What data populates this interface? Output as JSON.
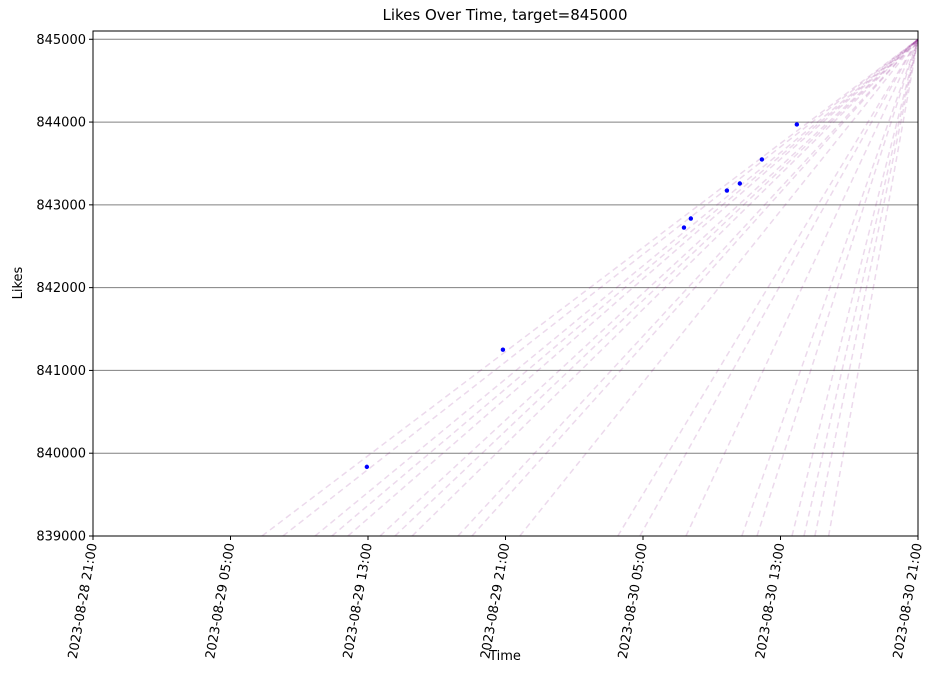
{
  "chart_data": {
    "type": "scatter",
    "title": "Likes Over Time, target=845000",
    "x_label": "Time",
    "y_label": "Likes",
    "x": [
      "2023-08-29 12:56",
      "2023-08-29 20:51",
      "2023-08-30 07:23",
      "2023-08-30 07:47",
      "2023-08-30 09:53",
      "2023-08-30 10:38",
      "2023-08-30 11:55",
      "2023-08-30 13:57"
    ],
    "values": [
      839835,
      841250,
      842726,
      842835,
      843173,
      843258,
      843548,
      843971
    ],
    "color": "#0000ff",
    "projections": {
      "color": "#800080",
      "target_x": "2023-08-30 21:00",
      "target": 845000,
      "start_y": 839000,
      "x_start": [
        "2023-08-29 06:50",
        "2023-08-29 08:03",
        "2023-08-29 09:55",
        "2023-08-29 10:54",
        "2023-08-29 11:50",
        "2023-08-29 13:42",
        "2023-08-29 14:34",
        "2023-08-29 15:34",
        "2023-08-29 18:14",
        "2023-08-29 19:03",
        "2023-08-29 21:50",
        "2023-08-30 03:32",
        "2023-08-30 04:49",
        "2023-08-30 07:30",
        "2023-08-30 10:45",
        "2023-08-30 11:38",
        "2023-08-30 13:40",
        "2023-08-30 14:22",
        "2023-08-30 15:00",
        "2023-08-30 15:48"
      ]
    },
    "xlim": [
      "2023-08-28 21:00",
      "2023-08-30 21:00"
    ],
    "xticks": [
      "2023-08-28 21:00",
      "2023-08-29 05:00",
      "2023-08-29 13:00",
      "2023-08-29 21:00",
      "2023-08-30 05:00",
      "2023-08-30 13:00",
      "2023-08-30 21:00"
    ],
    "ylim": [
      839000,
      845100
    ],
    "yticks": [
      839000,
      840000,
      841000,
      842000,
      843000,
      844000,
      845000
    ],
    "grid": true
  }
}
